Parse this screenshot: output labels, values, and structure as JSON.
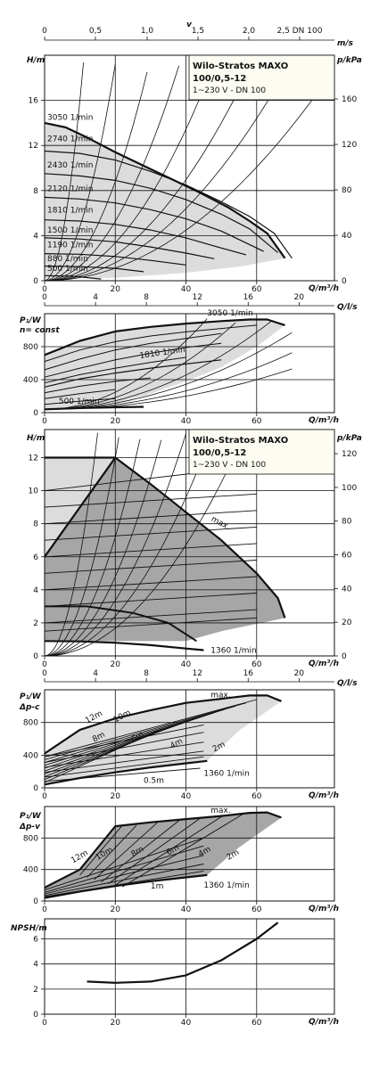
{
  "top_axis": {
    "label": "v",
    "unit": "m/s",
    "ticks": [
      "0",
      "0,5",
      "1,0",
      "1,5",
      "2,0",
      "2,5 DN 100"
    ]
  },
  "info_box": {
    "title_line1": "Wilo-Stratos MAXO",
    "title_line2": "100/0,5-12",
    "subtitle": "1~230 V - DN 100"
  },
  "colors": {
    "fill_light": "#dcdcdc",
    "fill_dark": "#a6a6a6",
    "fill_mid": "#c9c9c9",
    "box_bg": "#fdfcf2",
    "line": "#111111"
  },
  "chart_data": [
    {
      "id": "hq_const",
      "type": "line",
      "x_label": "Q/m³/h",
      "y_label": "H/m",
      "y2_label": "p/kPa",
      "x_ticks": [
        "0",
        "20",
        "40",
        "60"
      ],
      "y_ticks": [
        "0",
        "4",
        "8",
        "12",
        "16"
      ],
      "y2_ticks": [
        "0",
        "40",
        "80",
        "120",
        "160"
      ],
      "ylim": [
        0,
        20
      ],
      "xlim": [
        0,
        82
      ],
      "series": [
        {
          "name": "3050 1/min",
          "x": [
            0,
            6,
            12,
            20,
            28,
            36,
            44,
            52,
            58,
            63,
            68
          ],
          "y": [
            14,
            13.6,
            12.7,
            11.4,
            10.2,
            9,
            7.8,
            6.5,
            5.3,
            4.2,
            2
          ]
        },
        {
          "name": "2740 1/min",
          "x": [
            0,
            10,
            20,
            30,
            40,
            50,
            58,
            65,
            70
          ],
          "y": [
            11.5,
            11.3,
            10.7,
            9.7,
            8.5,
            7,
            5.7,
            4.2,
            2
          ]
        },
        {
          "name": "2430 1/min",
          "x": [
            0,
            10,
            20,
            30,
            40,
            50,
            58,
            66
          ],
          "y": [
            9.5,
            9.3,
            8.9,
            8.2,
            7.2,
            5.9,
            4.6,
            2.5
          ]
        },
        {
          "name": "2120 1/min",
          "x": [
            0,
            10,
            20,
            30,
            40,
            50,
            62
          ],
          "y": [
            7.4,
            7.25,
            6.9,
            6.3,
            5.5,
            4.4,
            2.6
          ]
        },
        {
          "name": "1810 1/min",
          "x": [
            0,
            10,
            20,
            30,
            40,
            50,
            57
          ],
          "y": [
            5.4,
            5.3,
            5,
            4.5,
            3.8,
            2.9,
            2.3
          ]
        },
        {
          "name": "1500 1/min",
          "x": [
            0,
            10,
            20,
            30,
            40,
            48
          ],
          "y": [
            3.8,
            3.7,
            3.45,
            3,
            2.45,
            1.95
          ]
        },
        {
          "name": "1190 1/min",
          "x": [
            0,
            10,
            20,
            30,
            40
          ],
          "y": [
            2.4,
            2.35,
            2.15,
            1.8,
            1.4
          ]
        },
        {
          "name": "880 1/min",
          "x": [
            0,
            10,
            20,
            28
          ],
          "y": [
            1.3,
            1.25,
            1.1,
            0.8
          ]
        },
        {
          "name": "500 1/min",
          "x": [
            0,
            8,
            16
          ],
          "y": [
            0.45,
            0.4,
            0.15
          ]
        }
      ]
    },
    {
      "id": "p1_const",
      "type": "line",
      "x_label": "Q/m³/h",
      "x2_label": "Q/l/s",
      "y_label": "P₁/W",
      "y_label_extra": "n= const",
      "x_ticks": [
        "0",
        "20",
        "40",
        "60"
      ],
      "x2_ticks": [
        "0",
        "4",
        "8",
        "12",
        "16",
        "20"
      ],
      "y_ticks": [
        "0",
        "400",
        "800"
      ],
      "ylim": [
        0,
        1200
      ],
      "xlim": [
        0,
        82
      ],
      "series": [
        {
          "name": "3050 1/min",
          "x": [
            0,
            10,
            20,
            30,
            40,
            50,
            58,
            63,
            68
          ],
          "y": [
            700,
            870,
            985,
            1040,
            1080,
            1110,
            1130,
            1130,
            1060
          ]
        },
        {
          "name": "1810 1/min",
          "x": [
            0,
            10,
            20,
            30,
            40,
            50
          ],
          "y": [
            310,
            410,
            480,
            540,
            590,
            640
          ]
        },
        {
          "name": "500 1/min",
          "x": [
            0,
            10,
            20,
            28
          ],
          "y": [
            40,
            55,
            65,
            70
          ]
        }
      ]
    },
    {
      "id": "hq_dpv",
      "type": "line",
      "x_label": "Q/m³/h",
      "y_label": "H/m",
      "y2_label": "p/kPa",
      "x_ticks": [
        "0",
        "20",
        "40",
        "60"
      ],
      "y_ticks": [
        "0",
        "2",
        "4",
        "6",
        "8",
        "10",
        "12"
      ],
      "y2_ticks": [
        "0",
        "20",
        "40",
        "60",
        "80",
        "100",
        "120"
      ],
      "ylim": [
        0,
        13.7
      ],
      "xlim": [
        0,
        82
      ],
      "annotations": [
        "max.",
        "1360 1/min"
      ],
      "series": [
        {
          "name": "max.",
          "x": [
            0,
            20,
            30,
            40,
            50,
            60,
            66,
            68
          ],
          "y": [
            12,
            12,
            10.4,
            8.7,
            7,
            5,
            3.5,
            2.3
          ]
        },
        {
          "name": "1360 1/min",
          "x": [
            0,
            10,
            20,
            30,
            40,
            45
          ],
          "y": [
            0.9,
            0.88,
            0.8,
            0.65,
            0.45,
            0.35
          ]
        }
      ]
    },
    {
      "id": "p1_dpc",
      "type": "line",
      "x_label": "Q/m³/h",
      "y_label": "P₁/W",
      "y_label_extra": "Δp-c",
      "x_ticks": [
        "0",
        "20",
        "40",
        "60"
      ],
      "y_ticks": [
        "0",
        "400",
        "800"
      ],
      "ylim": [
        0,
        1200
      ],
      "xlim": [
        0,
        82
      ],
      "annotations": [
        "max.",
        "12m",
        "10m",
        "8m",
        "6m",
        "4m",
        "2m",
        "0.5m",
        "1360 1/min"
      ],
      "series": [
        {
          "name": "max.",
          "x": [
            0,
            10,
            20,
            30,
            40,
            50,
            58,
            63,
            67
          ],
          "y": [
            420,
            710,
            850,
            950,
            1040,
            1090,
            1130,
            1130,
            1060
          ]
        },
        {
          "name": "1360 1/min",
          "x": [
            0,
            10,
            20,
            30,
            40,
            46
          ],
          "y": [
            40,
            120,
            190,
            250,
            300,
            330
          ]
        }
      ]
    },
    {
      "id": "p1_dpv",
      "type": "line",
      "x_label": "Q/m³/h",
      "y_label": "P₁/W",
      "y_label_extra": "Δp-v",
      "x_ticks": [
        "0",
        "20",
        "40",
        "60"
      ],
      "y_ticks": [
        "0",
        "400",
        "800"
      ],
      "ylim": [
        0,
        1200
      ],
      "xlim": [
        0,
        82
      ],
      "annotations": [
        "max.",
        "12m",
        "10m",
        "8m",
        "6m",
        "4m",
        "2m",
        "1m",
        "1360 1/min"
      ],
      "series": [
        {
          "name": "max.",
          "x": [
            0,
            10,
            20,
            30,
            40,
            50,
            58,
            63,
            67
          ],
          "y": [
            170,
            400,
            950,
            1000,
            1040,
            1080,
            1120,
            1125,
            1060
          ]
        },
        {
          "name": "1360 1/min",
          "x": [
            0,
            10,
            20,
            30,
            40,
            46
          ],
          "y": [
            40,
            120,
            190,
            250,
            300,
            330
          ]
        }
      ]
    },
    {
      "id": "npsh",
      "type": "line",
      "x_label": "Q/m³/h",
      "y_label": "NPSH/m",
      "x_ticks": [
        "0",
        "20",
        "40",
        "60"
      ],
      "y_ticks": [
        "0",
        "2",
        "4",
        "6"
      ],
      "ylim": [
        0,
        7.6
      ],
      "xlim": [
        0,
        82
      ],
      "series": [
        {
          "name": "",
          "x": [
            12,
            20,
            30,
            40,
            50,
            60,
            66
          ],
          "y": [
            2.6,
            2.5,
            2.6,
            3.1,
            4.3,
            6,
            7.3
          ]
        }
      ]
    }
  ]
}
